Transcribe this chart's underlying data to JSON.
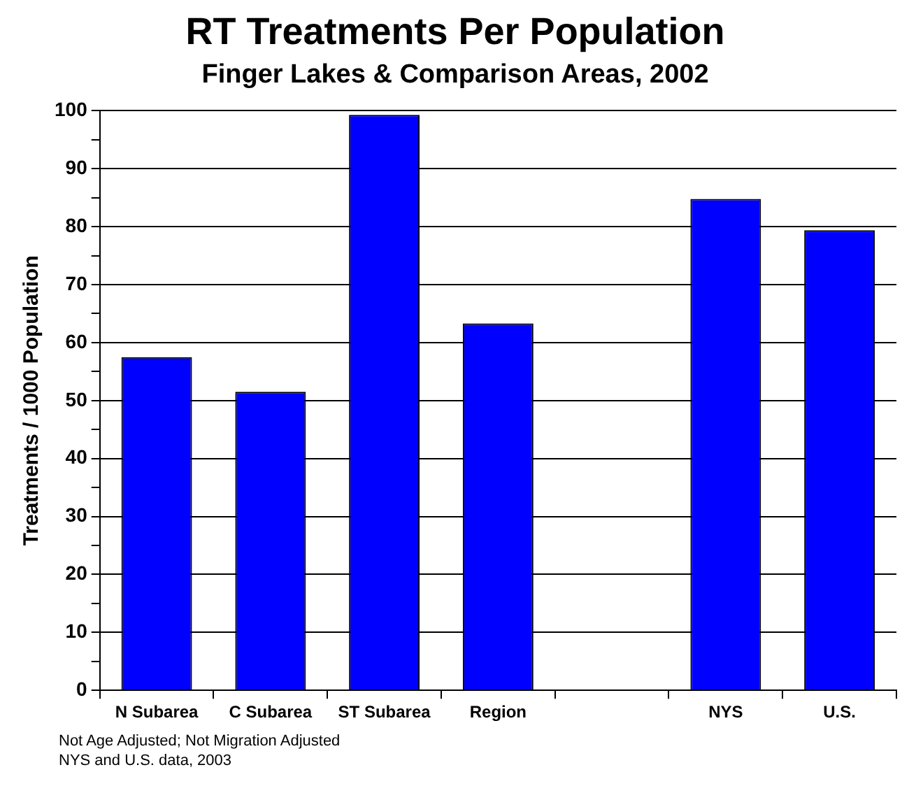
{
  "chart_data": {
    "type": "bar",
    "title": "RT Treatments Per Population",
    "subtitle": "Finger Lakes & Comparison Areas, 2002",
    "ylabel": "Treatments / 1000 Population",
    "categories": [
      "N Subarea",
      "C Subarea",
      "ST Subarea",
      "Region",
      null,
      "NYS",
      "U.S."
    ],
    "values": [
      57.5,
      51.5,
      99.3,
      63.3,
      null,
      84.8,
      79.4
    ],
    "color": "#0000ff",
    "ylim": [
      0,
      100
    ],
    "yticks": [
      0,
      {
        "value": 5,
        "label": null
      },
      10,
      {
        "value": 15,
        "label": null
      },
      20,
      {
        "value": 25,
        "label": null
      },
      30,
      {
        "value": 35,
        "label": null
      },
      40,
      {
        "value": 45,
        "label": null
      },
      50,
      {
        "value": 55,
        "label": null
      },
      60,
      {
        "value": 65,
        "label": null
      },
      70,
      {
        "value": 75,
        "label": null
      },
      80,
      {
        "value": 85,
        "label": null
      },
      90,
      {
        "value": 95,
        "label": null
      },
      100
    ],
    "grid": "y",
    "legend": false,
    "annotations": [
      "Not Age Adjusted; Not Migration Adjusted",
      "NYS and U.S. data, 2003"
    ]
  }
}
